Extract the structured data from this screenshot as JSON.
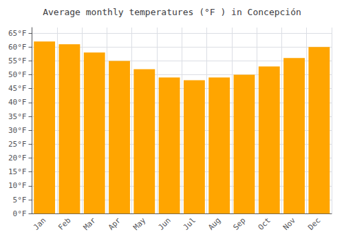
{
  "chart_data": {
    "type": "bar",
    "title": "Average monthly temperatures (°F ) in Concepción",
    "categories": [
      "Jan",
      "Feb",
      "Mar",
      "Apr",
      "May",
      "Jun",
      "Jul",
      "Aug",
      "Sep",
      "Oct",
      "Nov",
      "Dec"
    ],
    "values": [
      62,
      61,
      58,
      55,
      52,
      49,
      48,
      49,
      50,
      53,
      56,
      60
    ],
    "color": "#FFA500",
    "ylim": [
      0,
      67
    ],
    "yticks": [
      {
        "value": 0,
        "label": "0°F"
      },
      {
        "value": 5,
        "label": "5°F"
      },
      {
        "value": 10,
        "label": "10°F"
      },
      {
        "value": 15,
        "label": "15°F"
      },
      {
        "value": 20,
        "label": "20°F"
      },
      {
        "value": 25,
        "label": "25°F"
      },
      {
        "value": 30,
        "label": "30°F"
      },
      {
        "value": 35,
        "label": "35°F"
      },
      {
        "value": 40,
        "label": "40°F"
      },
      {
        "value": 45,
        "label": "45°F"
      },
      {
        "value": 50,
        "label": "50°F"
      },
      {
        "value": 55,
        "label": "55°F"
      },
      {
        "value": 60,
        "label": "60°F"
      },
      {
        "value": 65,
        "label": "65°F"
      }
    ],
    "grid": true
  }
}
